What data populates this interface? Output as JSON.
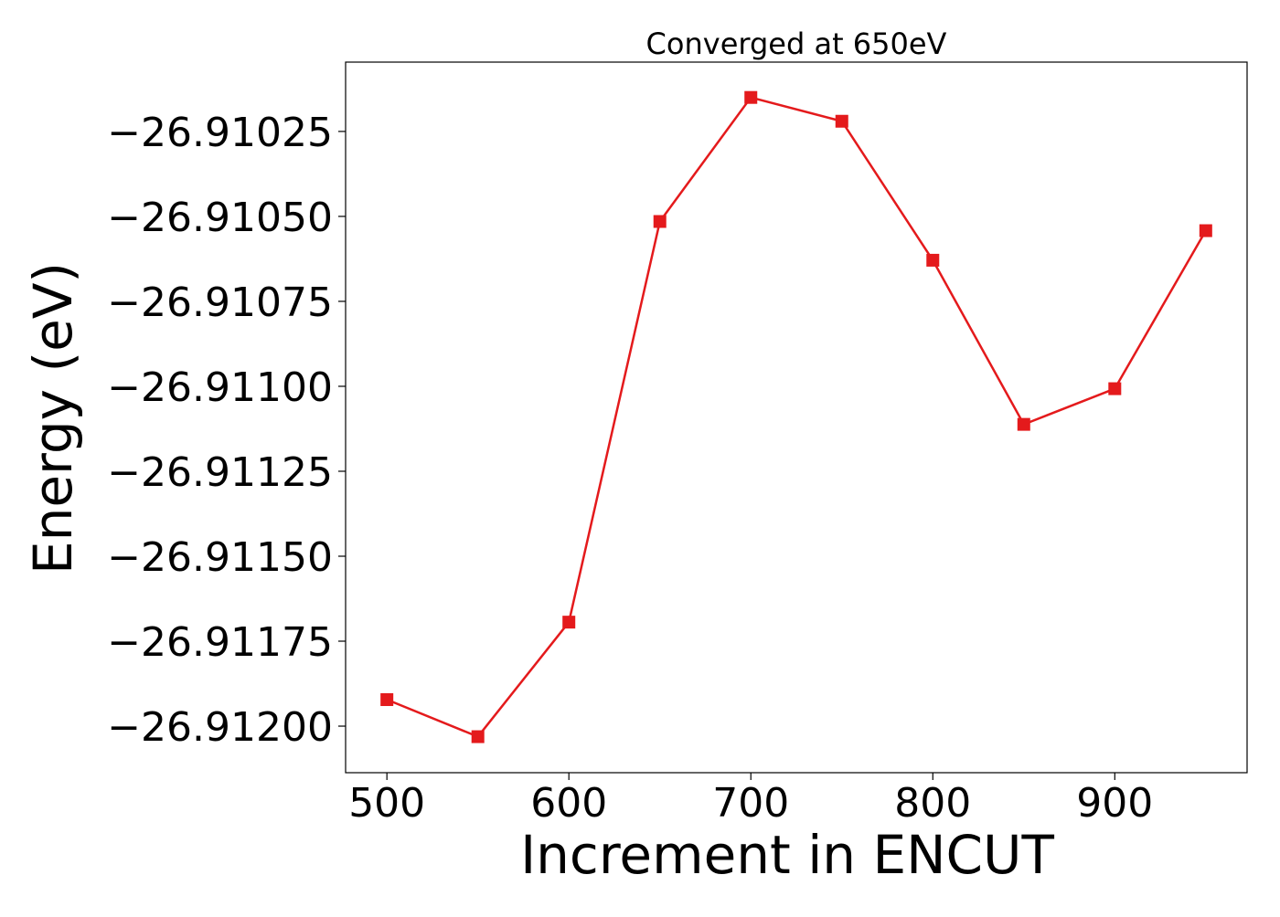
{
  "chart_data": {
    "type": "line",
    "title": "Converged at 650eV",
    "xlabel": "Increment in ENCUT",
    "ylabel": "Energy (eV)",
    "x": [
      500,
      550,
      600,
      650,
      700,
      750,
      800,
      850,
      900,
      950
    ],
    "series": [
      {
        "values": [
          -26.911922,
          -26.912031,
          -26.911694,
          -26.910515,
          -26.91015,
          -26.91022,
          -26.910629,
          -26.911112,
          -26.911007,
          -26.910542
        ],
        "color": "#e41a1c",
        "marker": "square"
      }
    ],
    "xticks": [
      500,
      600,
      700,
      800,
      900
    ],
    "xtick_labels": [
      "500",
      "600",
      "700",
      "800",
      "900"
    ],
    "yticks": [
      -26.91025,
      -26.9105,
      -26.91075,
      -26.911,
      -26.91125,
      -26.9115,
      -26.91175,
      -26.912
    ],
    "ytick_labels": [
      "−26.91025",
      "−26.91050",
      "−26.91075",
      "−26.91100",
      "−26.91125",
      "−26.91150",
      "−26.91175",
      "−26.91200"
    ],
    "xlim": [
      477.3,
      972.7
    ],
    "ylim": [
      -26.912137,
      -26.910046
    ],
    "grid": false,
    "legend": "none"
  }
}
